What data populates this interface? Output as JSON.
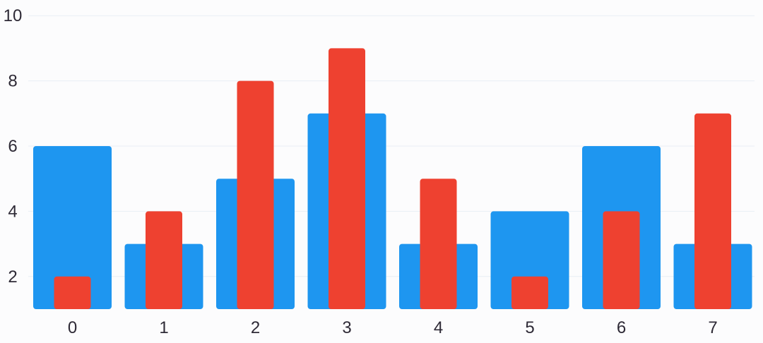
{
  "chart_data": {
    "type": "bar",
    "categories": [
      "0",
      "1",
      "2",
      "3",
      "4",
      "5",
      "6",
      "7"
    ],
    "series": [
      {
        "values": [
          6,
          3,
          5,
          7,
          3,
          4,
          6,
          3
        ],
        "color": "#1e96f0"
      },
      {
        "values": [
          2,
          4,
          8,
          9,
          5,
          2,
          4,
          7
        ],
        "color": "#ee4130"
      }
    ],
    "ylim": [
      1,
      10
    ],
    "yticks": [
      2,
      4,
      6,
      8,
      10
    ],
    "grid": true,
    "legend": false,
    "title": "",
    "xlabel": "",
    "ylabel": ""
  }
}
